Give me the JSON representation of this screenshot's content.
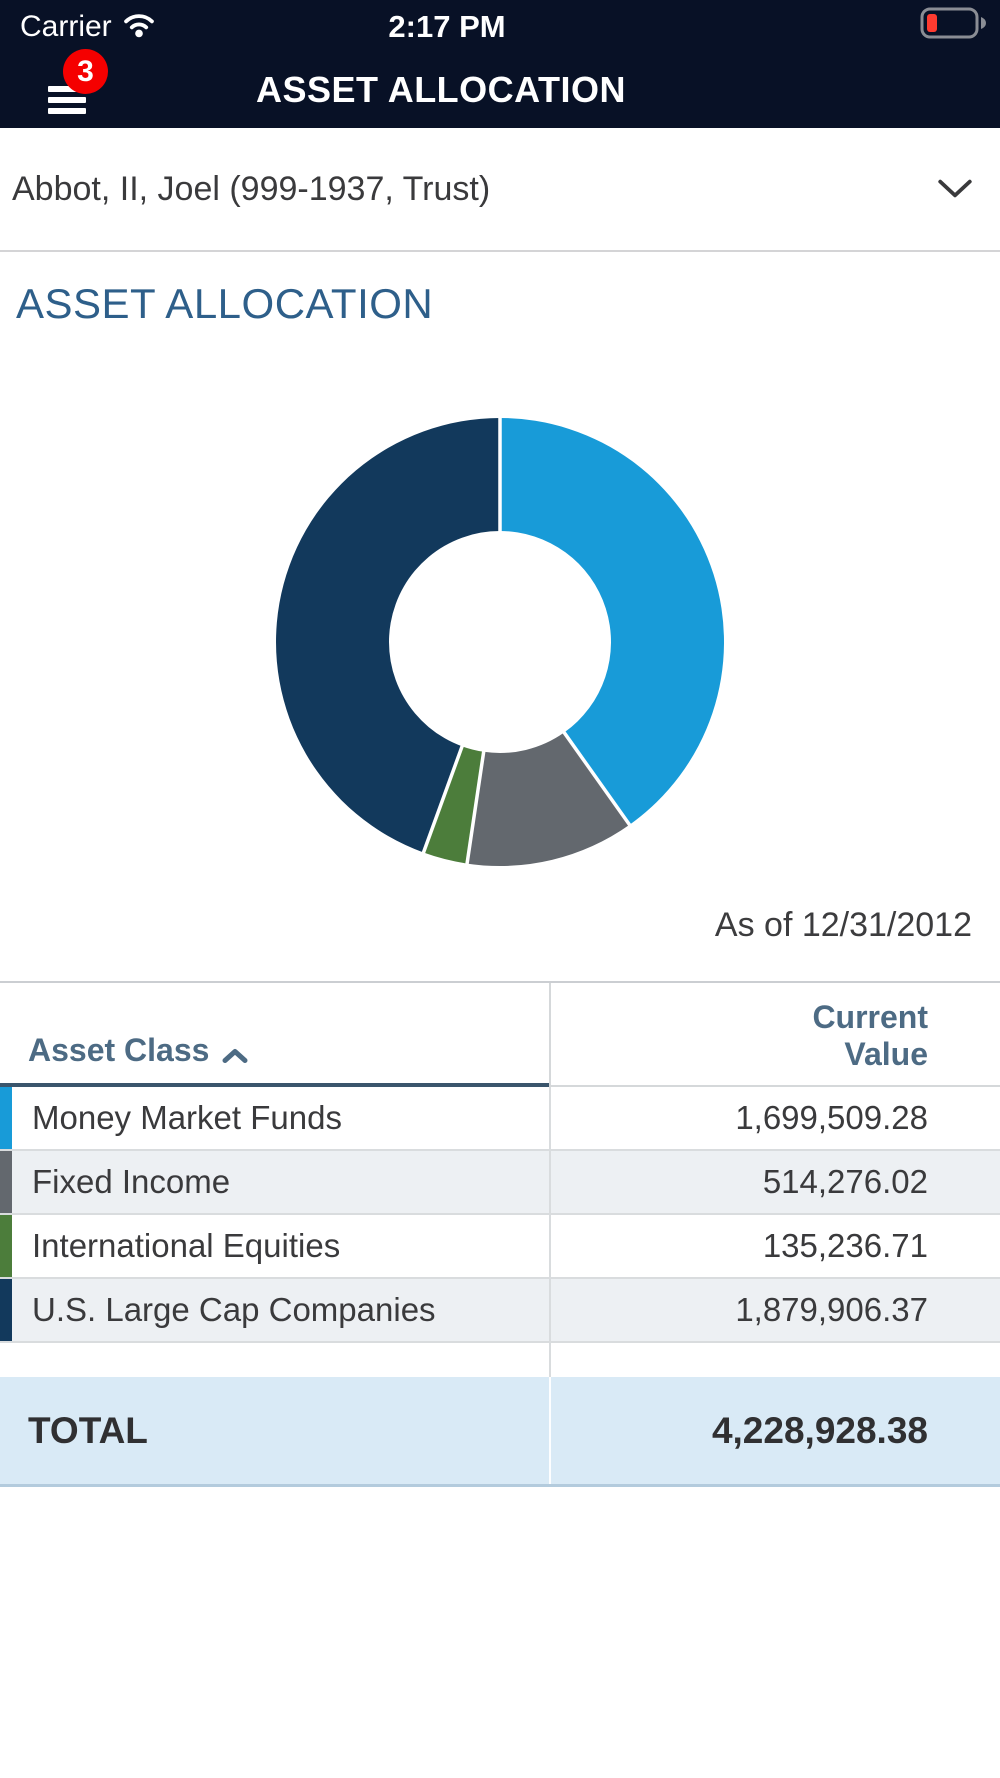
{
  "status_bar": {
    "carrier": "Carrier",
    "time": "2:17 PM",
    "battery_level": "low"
  },
  "nav": {
    "title": "ASSET ALLOCATION",
    "menu_badge": "3"
  },
  "account_selector": {
    "label": "Abbot, II, Joel (999-1937, Trust)"
  },
  "section": {
    "title": "ASSET ALLOCATION",
    "as_of": "As of 12/31/2012"
  },
  "chart_data": {
    "type": "pie",
    "donut": true,
    "title": "Asset Allocation",
    "as_of": "As of 12/31/2012",
    "categories": [
      "Money Market Funds",
      "Fixed Income",
      "International Equities",
      "U.S. Large Cap Companies"
    ],
    "values": [
      1699509.28,
      514276.02,
      135236.71,
      1879906.37
    ],
    "percentages": [
      40.19,
      12.16,
      3.2,
      44.45
    ],
    "colors": [
      "#189bd8",
      "#63686e",
      "#4c7d3b",
      "#12395c"
    ],
    "total": 4228928.38,
    "start_angle_deg": 0,
    "direction": "clockwise",
    "legend_position": "table-below"
  },
  "table": {
    "headers": {
      "asset_class": "Asset Class",
      "current_value": "Current Value"
    },
    "sort": {
      "column": "asset_class",
      "direction": "ascending",
      "icon": "caret-up-icon"
    },
    "rows": [
      {
        "label": "Money Market Funds",
        "value": "1,699,509.28",
        "color": "#189bd8"
      },
      {
        "label": "Fixed Income",
        "value": "514,276.02",
        "color": "#63686e"
      },
      {
        "label": "International Equities",
        "value": "135,236.71",
        "color": "#4c7d3b"
      },
      {
        "label": "U.S. Large Cap Companies",
        "value": "1,879,906.37",
        "color": "#12395c"
      }
    ],
    "total": {
      "label": "TOTAL",
      "value": "4,228,928.38"
    }
  },
  "colors": {
    "navbar_bg": "#081126",
    "badge_red": "#f50000",
    "battery_red": "#ff3b30",
    "heading_blue": "#2e5f8a",
    "table_header_text": "#4d6b84",
    "header_underline": "#3a556c",
    "row_text": "#3a3a3c",
    "alt_row_bg": "#edf0f3",
    "total_row_bg": "#d9eaf6"
  }
}
